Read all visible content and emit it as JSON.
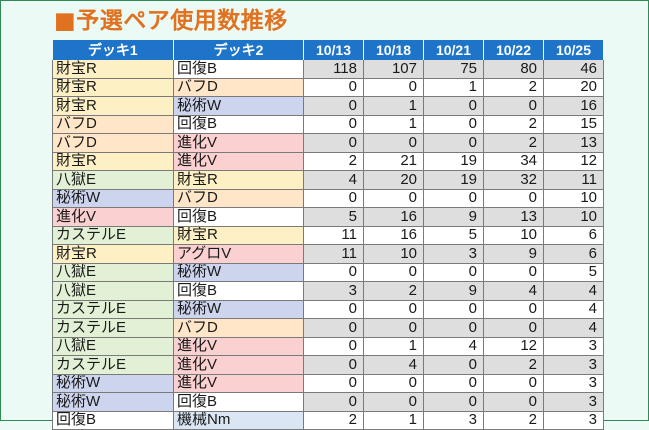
{
  "title": "■予選ペア使用数推移",
  "headers": [
    "デッキ1",
    "デッキ2",
    "10/13",
    "10/18",
    "10/21",
    "10/22",
    "10/25"
  ],
  "rows": [
    {
      "deck1": "財宝R",
      "deck2": "回復B",
      "values": [
        "118",
        "107",
        "75",
        "80",
        "46"
      ]
    },
    {
      "deck1": "財宝R",
      "deck2": "バフD",
      "values": [
        "0",
        "0",
        "1",
        "2",
        "20"
      ]
    },
    {
      "deck1": "財宝R",
      "deck2": "秘術W",
      "values": [
        "0",
        "1",
        "0",
        "0",
        "16"
      ]
    },
    {
      "deck1": "バフD",
      "deck2": "回復B",
      "values": [
        "0",
        "1",
        "0",
        "2",
        "15"
      ]
    },
    {
      "deck1": "バフD",
      "deck2": "進化V",
      "values": [
        "0",
        "0",
        "0",
        "2",
        "13"
      ]
    },
    {
      "deck1": "財宝R",
      "deck2": "進化V",
      "values": [
        "2",
        "21",
        "19",
        "34",
        "12"
      ]
    },
    {
      "deck1": "八獄E",
      "deck2": "財宝R",
      "values": [
        "4",
        "20",
        "19",
        "32",
        "11"
      ]
    },
    {
      "deck1": "秘術W",
      "deck2": "バフD",
      "values": [
        "0",
        "0",
        "0",
        "0",
        "10"
      ]
    },
    {
      "deck1": "進化V",
      "deck2": "回復B",
      "values": [
        "5",
        "16",
        "9",
        "13",
        "10"
      ]
    },
    {
      "deck1": "カステルE",
      "deck2": "財宝R",
      "values": [
        "11",
        "16",
        "5",
        "10",
        "6"
      ]
    },
    {
      "deck1": "財宝R",
      "deck2": "アグロV",
      "values": [
        "11",
        "10",
        "3",
        "9",
        "6"
      ]
    },
    {
      "deck1": "八獄E",
      "deck2": "秘術W",
      "values": [
        "0",
        "0",
        "0",
        "0",
        "5"
      ]
    },
    {
      "deck1": "八獄E",
      "deck2": "回復B",
      "values": [
        "3",
        "2",
        "9",
        "4",
        "4"
      ]
    },
    {
      "deck1": "カステルE",
      "deck2": "秘術W",
      "values": [
        "0",
        "0",
        "0",
        "0",
        "4"
      ]
    },
    {
      "deck1": "カステルE",
      "deck2": "バフD",
      "values": [
        "0",
        "0",
        "0",
        "0",
        "4"
      ]
    },
    {
      "deck1": "八獄E",
      "deck2": "進化V",
      "values": [
        "0",
        "1",
        "4",
        "12",
        "3"
      ]
    },
    {
      "deck1": "カステルE",
      "deck2": "進化V",
      "values": [
        "0",
        "4",
        "0",
        "2",
        "3"
      ]
    },
    {
      "deck1": "秘術W",
      "deck2": "進化V",
      "values": [
        "0",
        "0",
        "0",
        "0",
        "3"
      ]
    },
    {
      "deck1": "秘術W",
      "deck2": "回復B",
      "values": [
        "0",
        "0",
        "0",
        "0",
        "3"
      ]
    },
    {
      "deck1": "回復B",
      "deck2": "機械Nm",
      "values": [
        "2",
        "1",
        "3",
        "2",
        "3"
      ]
    }
  ]
}
